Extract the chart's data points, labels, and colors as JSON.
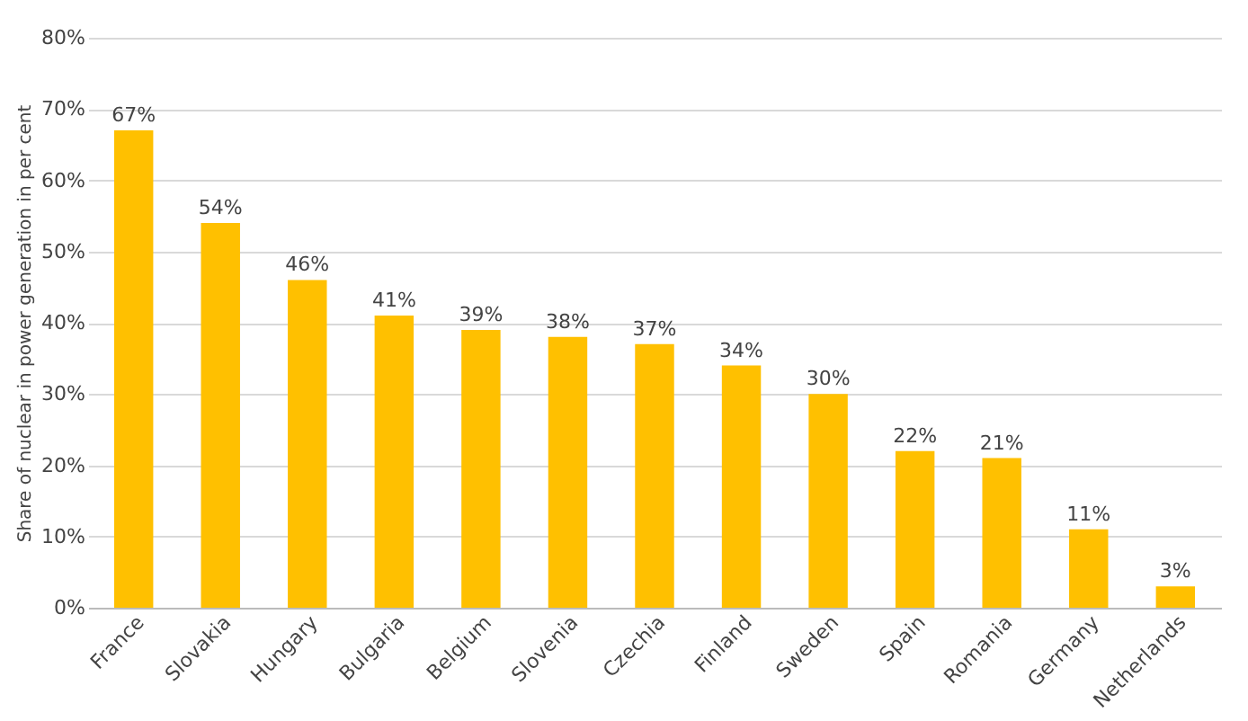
{
  "chart_data": {
    "type": "bar",
    "ylabel": "Share of nuclear in power generation in per cent",
    "categories": [
      "France",
      "Slovakia",
      "Hungary",
      "Bulgaria",
      "Belgium",
      "Slovenia",
      "Czechia",
      "Finland",
      "Sweden",
      "Spain",
      "Romania",
      "Germany",
      "Netherlands"
    ],
    "values": [
      67,
      54,
      46,
      41,
      39,
      38,
      37,
      34,
      30,
      22,
      21,
      11,
      3
    ],
    "value_labels": [
      "67%",
      "54%",
      "46%",
      "41%",
      "39%",
      "38%",
      "37%",
      "34%",
      "30%",
      "22%",
      "21%",
      "11%",
      "3%"
    ],
    "color": "#ffc000",
    "ylim": [
      0,
      80
    ],
    "yticks": [
      {
        "value": 0,
        "label": "0%"
      },
      {
        "value": 10,
        "label": "10%"
      },
      {
        "value": 20,
        "label": "20%"
      },
      {
        "value": 30,
        "label": "30%"
      },
      {
        "value": 40,
        "label": "40%"
      },
      {
        "value": 50,
        "label": "50%"
      },
      {
        "value": 60,
        "label": "60%"
      },
      {
        "value": 70,
        "label": "70%"
      },
      {
        "value": 80,
        "label": "80%"
      }
    ],
    "grid": "y"
  }
}
